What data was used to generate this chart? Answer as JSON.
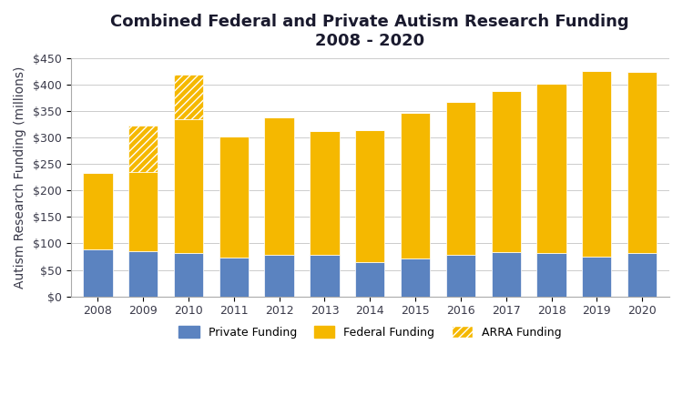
{
  "title_line1": "Combined Federal and Private Autism Research Funding",
  "title_line2": "2008 - 2020",
  "ylabel": "Autism Research Funding (millions)",
  "years": [
    "2008",
    "2009",
    "2010",
    "2011",
    "2012",
    "2013",
    "2014",
    "2015",
    "2016",
    "2017",
    "2018",
    "2019",
    "2020"
  ],
  "private_funding": [
    88,
    86,
    82,
    74,
    79,
    79,
    65,
    72,
    79,
    83,
    82,
    75,
    82
  ],
  "federal_funding": [
    145,
    148,
    252,
    228,
    258,
    233,
    249,
    275,
    288,
    305,
    320,
    350,
    342
  ],
  "arra_funding": [
    0,
    88,
    85,
    0,
    0,
    0,
    0,
    0,
    0,
    0,
    0,
    0,
    0
  ],
  "private_color": "#5B83C0",
  "federal_color": "#F5B800",
  "arra_color": "#F5B800",
  "ylim": [
    0,
    450
  ],
  "ytick_values": [
    0,
    50,
    100,
    150,
    200,
    250,
    300,
    350,
    400,
    450
  ],
  "ytick_labels": [
    "$0",
    "$50",
    "$100",
    "$150",
    "$200",
    "$250",
    "$300",
    "$350",
    "$400",
    "$450"
  ],
  "background_color": "#ffffff",
  "grid_color": "#cccccc",
  "title_fontsize": 13,
  "axis_label_fontsize": 10,
  "tick_fontsize": 9,
  "legend_fontsize": 9
}
